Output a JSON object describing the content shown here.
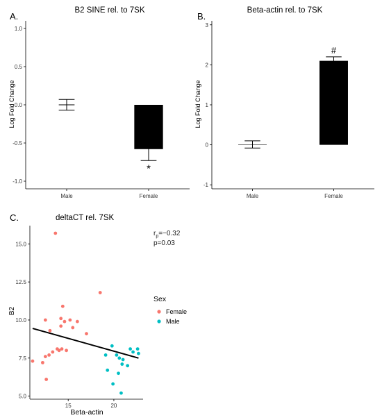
{
  "panel_labels": {
    "a": "A.",
    "b": "B.",
    "c": "C."
  },
  "chart_data": [
    {
      "type": "bar",
      "title": "B2 SINE rel. to 7SK",
      "xlabel": "",
      "ylabel": "Log Fold Change",
      "categories": [
        "Male",
        "Female"
      ],
      "values": [
        0.0,
        -0.58
      ],
      "errors": [
        0.07,
        0.15
      ],
      "ylim": [
        -1.1,
        1.1
      ],
      "yticks": [
        "1.0",
        "0.5",
        "0.0",
        "-0.5",
        "-1.0"
      ],
      "ytick_values": [
        1.0,
        0.5,
        0.0,
        -0.5,
        -1.0
      ],
      "annotations": [
        {
          "category": "Female",
          "text": "*"
        }
      ],
      "bar_color": "#000000",
      "grid": false
    },
    {
      "type": "bar",
      "title": "Beta-actin rel. to 7SK",
      "xlabel": "",
      "ylabel": "Log Fold Change",
      "categories": [
        "Male",
        "Female"
      ],
      "values": [
        0.01,
        2.1
      ],
      "errors": [
        0.09,
        0.1
      ],
      "ylim": [
        -1.1,
        3.1
      ],
      "yticks": [
        "3",
        "2",
        "1",
        "0",
        "-1"
      ],
      "ytick_values": [
        3,
        2,
        1,
        0,
        -1
      ],
      "annotations": [
        {
          "category": "Female",
          "text": "#"
        }
      ],
      "bar_color": "#000000",
      "grid": false
    },
    {
      "type": "scatter",
      "title": "deltaCT rel. 7SK",
      "xlabel": "Beta-actin",
      "ylabel": "B2",
      "xlim": [
        10.8,
        23.2
      ],
      "ylim": [
        4.8,
        16.2
      ],
      "xticks": [
        "15",
        "20"
      ],
      "xtick_values": [
        15,
        20
      ],
      "yticks": [
        "15.0",
        "12.5",
        "10.0",
        "7.5",
        "5.0"
      ],
      "ytick_values": [
        15.0,
        12.5,
        10.0,
        7.5,
        5.0
      ],
      "legend": {
        "title": "Sex",
        "position": "right",
        "entries": [
          "Female",
          "Male"
        ]
      },
      "stats": {
        "r_text": "r",
        "r_sub": "p",
        "r_value": "=−0.32",
        "p_text": "p=0.03"
      },
      "regression": {
        "x": [
          11.1,
          22.7
        ],
        "y": [
          9.45,
          7.5
        ]
      },
      "series": [
        {
          "name": "Female",
          "color": "#F8766D",
          "points": [
            [
              11.1,
              7.3
            ],
            [
              12.2,
              7.2
            ],
            [
              12.5,
              7.6
            ],
            [
              12.9,
              7.7
            ],
            [
              13.3,
              7.9
            ],
            [
              12.6,
              6.1
            ],
            [
              13.0,
              9.3
            ],
            [
              12.5,
              10.0
            ],
            [
              13.6,
              15.7
            ],
            [
              14.0,
              8.0
            ],
            [
              14.3,
              8.1
            ],
            [
              14.8,
              8.0
            ],
            [
              14.2,
              9.6
            ],
            [
              14.6,
              9.9
            ],
            [
              14.2,
              10.1
            ],
            [
              14.4,
              10.9
            ],
            [
              15.2,
              10.0
            ],
            [
              16.0,
              9.9
            ],
            [
              17.0,
              9.1
            ],
            [
              18.5,
              11.8
            ],
            [
              15.5,
              9.5
            ],
            [
              13.8,
              8.1
            ]
          ]
        },
        {
          "name": "Male",
          "color": "#00BFC4",
          "points": [
            [
              19.1,
              7.7
            ],
            [
              19.3,
              6.7
            ],
            [
              19.8,
              8.3
            ],
            [
              19.9,
              5.8
            ],
            [
              20.3,
              7.7
            ],
            [
              20.6,
              7.5
            ],
            [
              20.9,
              7.1
            ],
            [
              20.8,
              5.2
            ],
            [
              21.0,
              7.4
            ],
            [
              21.5,
              7.0
            ],
            [
              21.8,
              8.1
            ],
            [
              22.1,
              7.9
            ],
            [
              22.6,
              8.1
            ],
            [
              22.7,
              7.8
            ],
            [
              20.5,
              6.5
            ]
          ]
        }
      ]
    }
  ]
}
